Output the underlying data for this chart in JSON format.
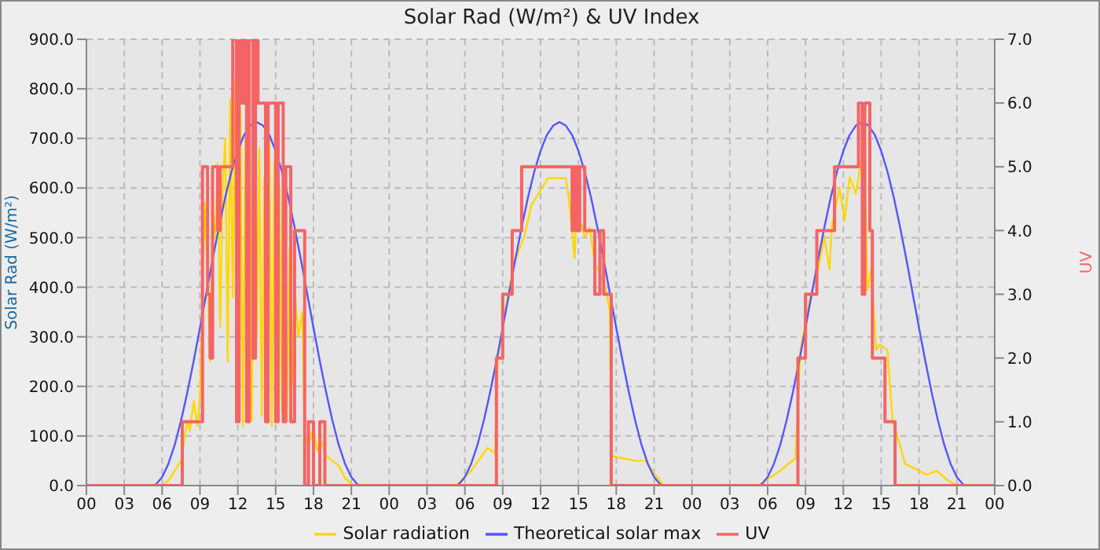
{
  "chart_data": {
    "type": "line",
    "title": "Solar Rad (W/m²) & UV Index",
    "ylabel": "Solar Rad (W/m²)",
    "y2label": "UV",
    "xlim": [
      0,
      72
    ],
    "xticks": [
      {
        "value": 0,
        "label": "00"
      },
      {
        "value": 3,
        "label": "03"
      },
      {
        "value": 6,
        "label": "06"
      },
      {
        "value": 9,
        "label": "09"
      },
      {
        "value": 12,
        "label": "12"
      },
      {
        "value": 15,
        "label": "15"
      },
      {
        "value": 18,
        "label": "18"
      },
      {
        "value": 21,
        "label": "21"
      },
      {
        "value": 24,
        "label": "00"
      },
      {
        "value": 27,
        "label": "03"
      },
      {
        "value": 30,
        "label": "06"
      },
      {
        "value": 33,
        "label": "09"
      },
      {
        "value": 36,
        "label": "12"
      },
      {
        "value": 39,
        "label": "15"
      },
      {
        "value": 42,
        "label": "18"
      },
      {
        "value": 45,
        "label": "21"
      },
      {
        "value": 48,
        "label": "00"
      },
      {
        "value": 51,
        "label": "03"
      },
      {
        "value": 54,
        "label": "06"
      },
      {
        "value": 57,
        "label": "09"
      },
      {
        "value": 60,
        "label": "12"
      },
      {
        "value": 63,
        "label": "15"
      },
      {
        "value": 66,
        "label": "18"
      },
      {
        "value": 69,
        "label": "21"
      },
      {
        "value": 72,
        "label": "00"
      }
    ],
    "ylim": [
      0,
      900
    ],
    "yticks": [
      {
        "value": 0,
        "label": "0.0"
      },
      {
        "value": 100,
        "label": "100.0"
      },
      {
        "value": 200,
        "label": "200.0"
      },
      {
        "value": 300,
        "label": "300.0"
      },
      {
        "value": 400,
        "label": "400.0"
      },
      {
        "value": 500,
        "label": "500.0"
      },
      {
        "value": 600,
        "label": "600.0"
      },
      {
        "value": 700,
        "label": "700.0"
      },
      {
        "value": 800,
        "label": "800.0"
      },
      {
        "value": 900,
        "label": "900.0"
      }
    ],
    "y2lim": [
      0,
      7
    ],
    "y2ticks": [
      {
        "value": 0,
        "label": "0.0"
      },
      {
        "value": 1,
        "label": "1.0"
      },
      {
        "value": 2,
        "label": "2.0"
      },
      {
        "value": 3,
        "label": "3.0"
      },
      {
        "value": 4,
        "label": "4.0"
      },
      {
        "value": 5,
        "label": "5.0"
      },
      {
        "value": 6,
        "label": "6.0"
      },
      {
        "value": 7,
        "label": "7.0"
      }
    ],
    "grid": true,
    "legend": "bottom",
    "series": [
      {
        "name": "Solar radiation",
        "type": "line",
        "color": "#ffd700",
        "x": [
          0,
          5.9,
          6.5,
          7.0,
          7.5,
          7.8,
          8.0,
          8.2,
          8.5,
          8.8,
          9.0,
          9.2,
          9.4,
          9.6,
          9.8,
          10.0,
          10.2,
          10.4,
          10.6,
          10.8,
          11.0,
          11.2,
          11.4,
          11.6,
          11.8,
          12.0,
          12.2,
          12.4,
          12.6,
          12.8,
          12.9,
          13.1,
          13.3,
          13.5,
          13.7,
          13.9,
          14.1,
          14.3,
          14.5,
          14.7,
          14.9,
          15.1,
          15.3,
          15.5,
          15.7,
          15.9,
          16.1,
          16.3,
          16.5,
          16.8,
          17.1,
          17.3,
          17.6,
          18.0,
          18.3,
          18.6,
          19.0,
          19.5,
          20.0,
          20.5,
          21.2,
          29.3,
          30.5,
          31.8,
          32.4,
          32.6,
          33.25,
          33.9,
          34.7,
          35.3,
          36.6,
          38.0,
          38.25,
          38.7,
          38.9,
          39.1,
          39.5,
          39.9,
          40.3,
          40.75,
          41.2,
          41.5,
          41.6,
          42.5,
          43.5,
          44.3,
          45.0,
          45.75,
          53.25,
          55.0,
          56.2,
          56.6,
          57.0,
          57.4,
          58.0,
          58.5,
          58.9,
          59.1,
          59.7,
          60.1,
          60.5,
          61.0,
          61.4,
          61.7,
          61.9,
          62.2,
          62.6,
          62.9,
          63.5,
          63.9,
          64.3,
          64.9,
          65.75,
          66.6,
          67.4,
          68.25,
          69.1,
          72
        ],
        "values": [
          0,
          0,
          10,
          30,
          50,
          100,
          130,
          110,
          170,
          120,
          180,
          390,
          570,
          430,
          250,
          560,
          500,
          650,
          320,
          600,
          700,
          250,
          780,
          380,
          820,
          150,
          760,
          120,
          700,
          200,
          840,
          130,
          760,
          300,
          680,
          140,
          620,
          220,
          700,
          120,
          650,
          250,
          600,
          150,
          560,
          130,
          480,
          200,
          400,
          300,
          350,
          100,
          80,
          120,
          70,
          90,
          60,
          50,
          40,
          15,
          0,
          0,
          30,
          76,
          65,
          252,
          360,
          448,
          502,
          567,
          620,
          620,
          578,
          458,
          578,
          535,
          502,
          520,
          448,
          425,
          393,
          350,
          60,
          55,
          50,
          50,
          25,
          0,
          0,
          30,
          55,
          273,
          327,
          382,
          436,
          502,
          436,
          524,
          600,
          535,
          622,
          589,
          655,
          676,
          393,
          436,
          273,
          284,
          273,
          131,
          98,
          44,
          33,
          22,
          30,
          11,
          0,
          0
        ]
      },
      {
        "name": "Theoretical solar max",
        "type": "line",
        "color": "#5555ff",
        "x": [
          0,
          5,
          5.5,
          6,
          6.5,
          7,
          7.5,
          8,
          8.5,
          9,
          9.5,
          10,
          10.5,
          11,
          11.5,
          12,
          12.5,
          13,
          13.5,
          14,
          14.5,
          15,
          15.5,
          16,
          16.5,
          17,
          17.5,
          18,
          18.5,
          19,
          19.5,
          20,
          20.5,
          21,
          21.5,
          22,
          29,
          29.5,
          30,
          30.5,
          31,
          31.5,
          32,
          32.5,
          33,
          33.5,
          34,
          34.5,
          35,
          35.5,
          36,
          36.5,
          37,
          37.5,
          38,
          38.5,
          39,
          39.5,
          40,
          40.5,
          41,
          41.5,
          42,
          42.5,
          43,
          43.5,
          44,
          44.5,
          45,
          45.5,
          46,
          53,
          53.5,
          54,
          54.5,
          55,
          55.5,
          56,
          56.5,
          57,
          57.5,
          58,
          58.5,
          59,
          59.5,
          60,
          60.5,
          61,
          61.5,
          62,
          62.5,
          63,
          63.5,
          64,
          64.5,
          65,
          65.5,
          66,
          66.5,
          67,
          67.5,
          68,
          68.5,
          69,
          69.5,
          70,
          72
        ],
        "values": [
          0,
          0,
          2,
          17,
          44,
          82,
          131,
          188,
          251,
          318,
          387,
          456,
          521,
          581,
          633,
          675,
          707,
          726,
          733,
          726,
          707,
          675,
          633,
          581,
          521,
          456,
          387,
          318,
          251,
          188,
          131,
          82,
          44,
          17,
          2,
          0,
          0,
          2,
          17,
          44,
          82,
          131,
          188,
          251,
          318,
          387,
          456,
          521,
          581,
          633,
          675,
          707,
          726,
          733,
          726,
          707,
          675,
          633,
          581,
          521,
          456,
          387,
          318,
          251,
          188,
          131,
          82,
          44,
          17,
          2,
          0,
          0,
          2,
          17,
          44,
          82,
          131,
          188,
          251,
          318,
          387,
          456,
          521,
          581,
          633,
          675,
          707,
          726,
          733,
          726,
          707,
          675,
          633,
          581,
          521,
          456,
          387,
          318,
          251,
          188,
          131,
          82,
          44,
          17,
          2,
          0,
          0
        ]
      },
      {
        "name": "UV",
        "type": "step",
        "axis": "y2",
        "color": "#f46464",
        "x": [
          0,
          7.6,
          9.2,
          9.6,
          9.8,
          10.0,
          10.4,
          10.6,
          11.6,
          11.9,
          12.1,
          12.3,
          12.5,
          12.7,
          12.9,
          13.2,
          13.4,
          13.6,
          14.2,
          14.4,
          15.0,
          15.2,
          15.6,
          15.8,
          16.2,
          16.5,
          17.3,
          17.6,
          18.0,
          18.5,
          18.9,
          32.5,
          33.0,
          33.75,
          34.5,
          38.5,
          38.7,
          38.9,
          39.1,
          39.5,
          40.3,
          40.7,
          41.0,
          41.6,
          56.4,
          57.0,
          57.9,
          59.3,
          61.2,
          61.5,
          61.7,
          62.1,
          62.3,
          63.3,
          64.1,
          72
        ],
        "values": [
          0,
          1,
          5,
          3,
          2,
          5,
          4,
          5,
          7,
          1,
          7,
          6,
          7,
          1,
          7,
          2,
          7,
          6,
          1,
          6,
          1,
          6,
          1,
          5,
          1,
          4,
          0,
          1,
          0,
          1,
          0,
          2,
          3,
          4,
          5,
          4,
          5,
          4,
          5,
          4,
          3,
          4,
          3,
          0,
          2,
          3,
          4,
          5,
          6,
          3,
          6,
          4,
          2,
          1,
          0,
          0
        ]
      }
    ]
  }
}
